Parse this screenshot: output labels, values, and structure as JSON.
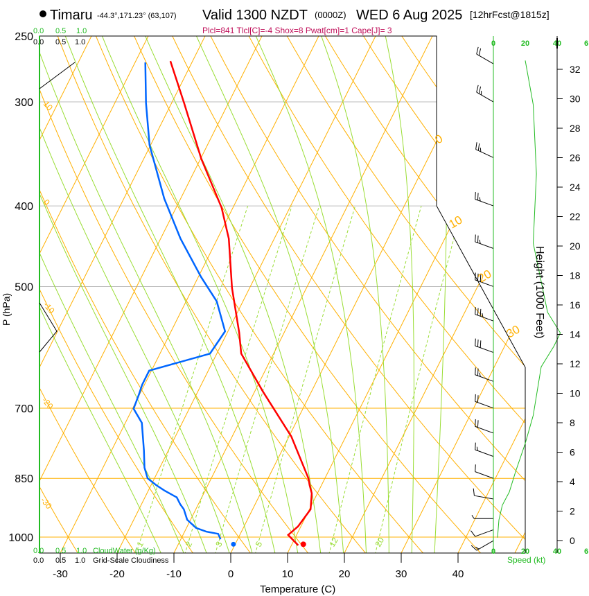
{
  "header": {
    "station": "Timaru",
    "coords": "-44.3°,171.23° (63,107)",
    "valid": "Valid 1300 NZDT",
    "utc": "(0000Z)",
    "date": "WED 6 Aug 2025",
    "fcst": "[12hrFcst@1815z]",
    "indices": "Plcl=841 Tlcl[C]=-4 Shox=8 Pwat[cm]=1 Cape[J]= 3"
  },
  "cloud_axis": {
    "green_ticks": [
      "0.0",
      "0.5",
      "1.0"
    ],
    "black_ticks": [
      "0.0",
      "0.5",
      "1.0"
    ],
    "green_label": "CloudWater (g/Kg)",
    "black_label": "Grid-Scale Cloudiness"
  },
  "chart_data": {
    "type": "line",
    "title": "Skew-T Log-P sounding",
    "xlabel": "Temperature (C)",
    "ylabel": "P (hPa)",
    "y2label": "Height (1000 Feet)",
    "speed_label": "Speed (kt)",
    "x_ticks": [
      -30,
      -20,
      -10,
      0,
      10,
      20,
      30,
      40
    ],
    "p_ticks": [
      250,
      300,
      400,
      500,
      700,
      850,
      1000
    ],
    "height_ticks": [
      0,
      2,
      4,
      6,
      8,
      10,
      12,
      14,
      16,
      18,
      20,
      22,
      24,
      26,
      28,
      30,
      32
    ],
    "speed_ticks": [
      "0",
      "20",
      "40",
      "6"
    ],
    "isotherm_labels": [
      {
        "t": "10"
      },
      {
        "t": "0"
      },
      {
        "t": "-10"
      },
      {
        "t": "-20"
      },
      {
        "t": "-30"
      }
    ],
    "isotherm_labels_right": [
      "0",
      "10",
      "20",
      "30"
    ],
    "mixing_ratios": [
      1,
      2,
      3,
      5,
      12,
      20
    ],
    "mixing_ratio_labels": [
      "1",
      "2",
      "3",
      "5",
      "12",
      "20"
    ],
    "colors": {
      "temp": "#ff0000",
      "dewpoint": "#0066ff",
      "isotherm": "#ffb000",
      "moist": "#99dd33",
      "speed": "#22bb22",
      "title_indices": "#c0105a"
    },
    "temperature": [
      [
        1023,
        11.2
      ],
      [
        994,
        8.5
      ],
      [
        971,
        9.5
      ],
      [
        926,
        10.2
      ],
      [
        886,
        9.0
      ],
      [
        866,
        7.9
      ],
      [
        850,
        7.1
      ],
      [
        757,
        0.4
      ],
      [
        669,
        -8.5
      ],
      [
        602,
        -15.7
      ],
      [
        568,
        -17.9
      ],
      [
        502,
        -23.1
      ],
      [
        438,
        -28.0
      ],
      [
        402,
        -32.0
      ],
      [
        351,
        -39.9
      ],
      [
        301,
        -47.8
      ],
      [
        268,
        -53.9
      ]
    ],
    "dewpoint": [
      [
        1006,
        -3.0
      ],
      [
        991,
        -3.9
      ],
      [
        985,
        -6.2
      ],
      [
        975,
        -8.3
      ],
      [
        953,
        -10.6
      ],
      [
        926,
        -12.1
      ],
      [
        913,
        -13.2
      ],
      [
        896,
        -14.4
      ],
      [
        879,
        -17.2
      ],
      [
        866,
        -19.1
      ],
      [
        850,
        -21.2
      ],
      [
        825,
        -22.7
      ],
      [
        787,
        -24.3
      ],
      [
        729,
        -27.1
      ],
      [
        701,
        -29.8
      ],
      [
        675,
        -30.1
      ],
      [
        656,
        -30.4
      ],
      [
        631,
        -30.4
      ],
      [
        602,
        -21.2
      ],
      [
        566,
        -20.5
      ],
      [
        521,
        -24.6
      ],
      [
        487,
        -29.5
      ],
      [
        438,
        -36.5
      ],
      [
        392,
        -42.9
      ],
      [
        338,
        -50.2
      ],
      [
        301,
        -54.5
      ],
      [
        269,
        -58.2
      ]
    ],
    "surface_dewpoint_marker": [
      1020,
      -0.3
    ],
    "surface_temp_marker": [
      1020,
      12.0
    ],
    "wind_speed_profile": [
      [
        20,
        32.6
      ],
      [
        25,
        29.6
      ],
      [
        27,
        24.9
      ],
      [
        25,
        20.2
      ],
      [
        34,
        15.5
      ],
      [
        42,
        14.1
      ],
      [
        38,
        13.2
      ],
      [
        30,
        11.8
      ],
      [
        25,
        8.5
      ],
      [
        20,
        6.6
      ],
      [
        14,
        4.7
      ],
      [
        10,
        3.3
      ],
      [
        5.6,
        2.4
      ],
      [
        3.5,
        1.4
      ],
      [
        2.6,
        0.2
      ]
    ],
    "winds": [
      [
        1010,
        240,
        15
      ],
      [
        980,
        250,
        10
      ],
      [
        950,
        270,
        8
      ],
      [
        900,
        280,
        10
      ],
      [
        850,
        290,
        12
      ],
      [
        800,
        290,
        15
      ],
      [
        750,
        290,
        20
      ],
      [
        700,
        290,
        22
      ],
      [
        650,
        290,
        25
      ],
      [
        600,
        290,
        30
      ],
      [
        550,
        290,
        35
      ],
      [
        500,
        290,
        30
      ],
      [
        450,
        290,
        25
      ],
      [
        400,
        290,
        25
      ],
      [
        350,
        295,
        27
      ],
      [
        300,
        300,
        25
      ],
      [
        270,
        300,
        20
      ]
    ]
  }
}
